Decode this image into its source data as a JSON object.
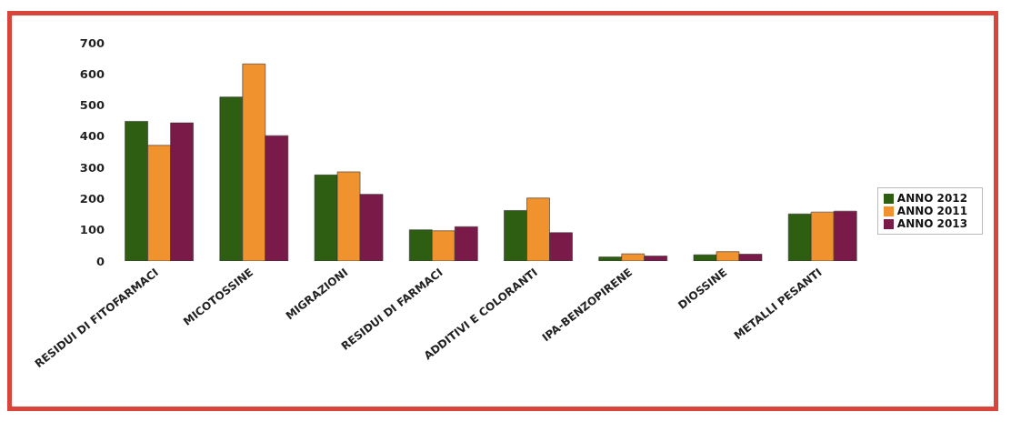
{
  "chart_data": {
    "type": "bar",
    "categories": [
      "RESIDUI DI FITOFARMACI",
      "MICOTOSSINE",
      "MIGRAZIONI",
      "RESIDUI DI FARMACI",
      "ADDITIVI E COLORANTI",
      "IPA-BENZOPIRENE",
      "DIOSSINE",
      "METALLI PESANTI"
    ],
    "series": [
      {
        "name": "ANNO 2012",
        "color": "#2e5e12",
        "values": [
          448,
          526,
          276,
          100,
          162,
          13,
          20,
          151
        ]
      },
      {
        "name": "ANNO 2011",
        "color": "#f0922e",
        "values": [
          371,
          632,
          286,
          97,
          202,
          23,
          30,
          157
        ]
      },
      {
        "name": "ANNO 2013",
        "color": "#7a1a48",
        "values": [
          443,
          402,
          214,
          110,
          91,
          16,
          22,
          160
        ]
      }
    ],
    "ylim": [
      0,
      700
    ],
    "yticks": [
      0,
      100,
      200,
      300,
      400,
      500,
      600,
      700
    ],
    "grid": false,
    "legend": "right"
  }
}
